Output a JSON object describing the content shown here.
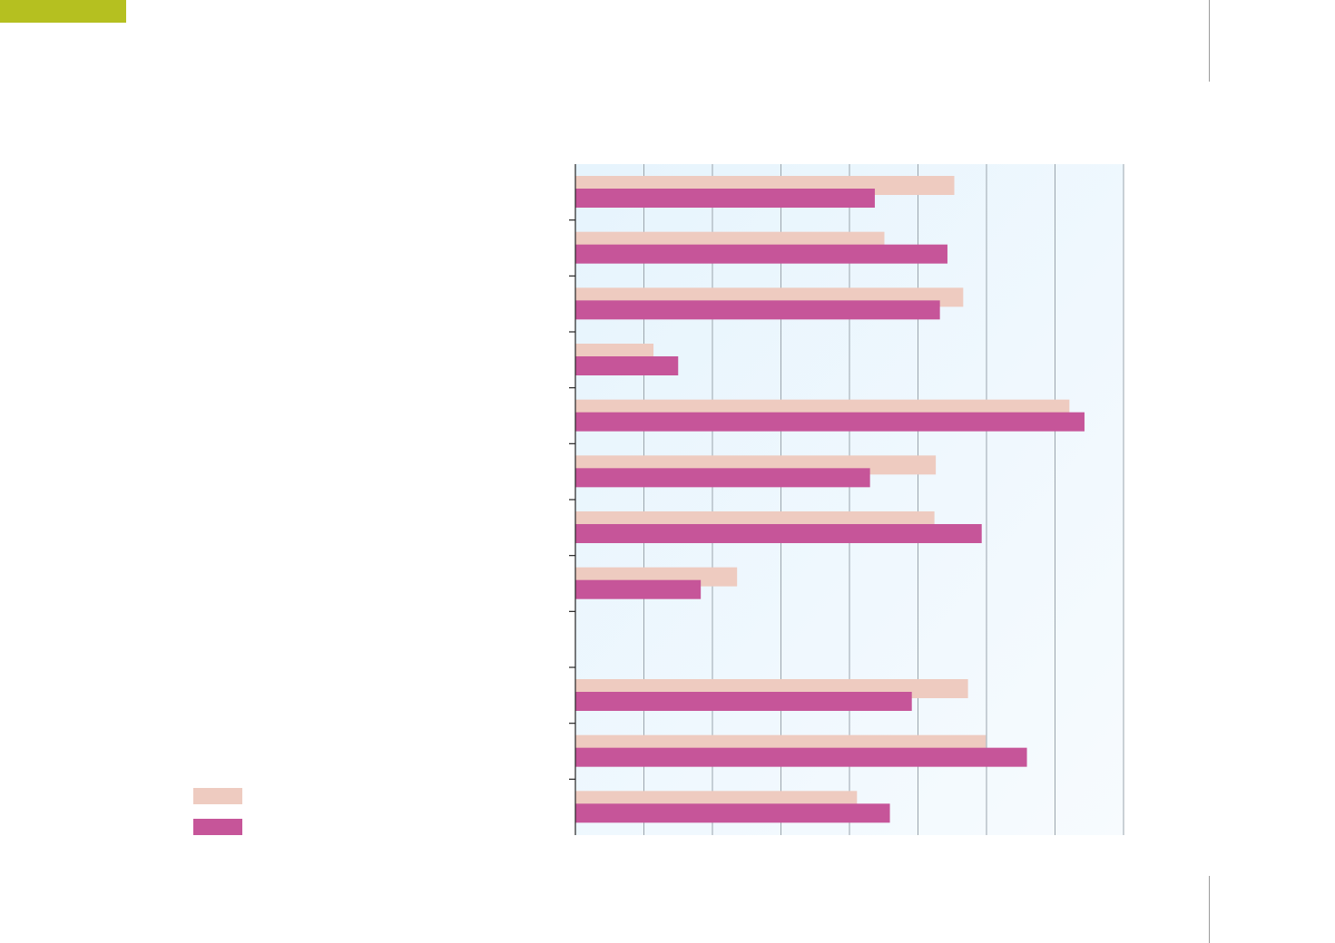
{
  "theme": {
    "accent": "#b5c020",
    "rule": "#9a9a9a"
  },
  "chart_data": {
    "type": "bar",
    "orientation": "horizontal",
    "title": "",
    "xlabel": "",
    "ylabel": "",
    "xlim": [
      0,
      8
    ],
    "grid": true,
    "legend_position": "bottom-left",
    "categories": [
      "",
      "",
      "",
      "",
      "",
      "",
      "",
      "",
      "",
      "",
      "",
      ""
    ],
    "series": [
      {
        "name": "",
        "color": "#eecbc0",
        "values": [
          5.53,
          4.51,
          5.66,
          1.14,
          7.21,
          5.26,
          5.24,
          2.36,
          null,
          5.73,
          5.99,
          4.11
        ]
      },
      {
        "name": "",
        "color": "#c65599",
        "values": [
          4.37,
          5.43,
          5.32,
          1.5,
          7.43,
          4.3,
          5.93,
          1.83,
          null,
          4.91,
          6.59,
          4.59
        ]
      }
    ]
  }
}
